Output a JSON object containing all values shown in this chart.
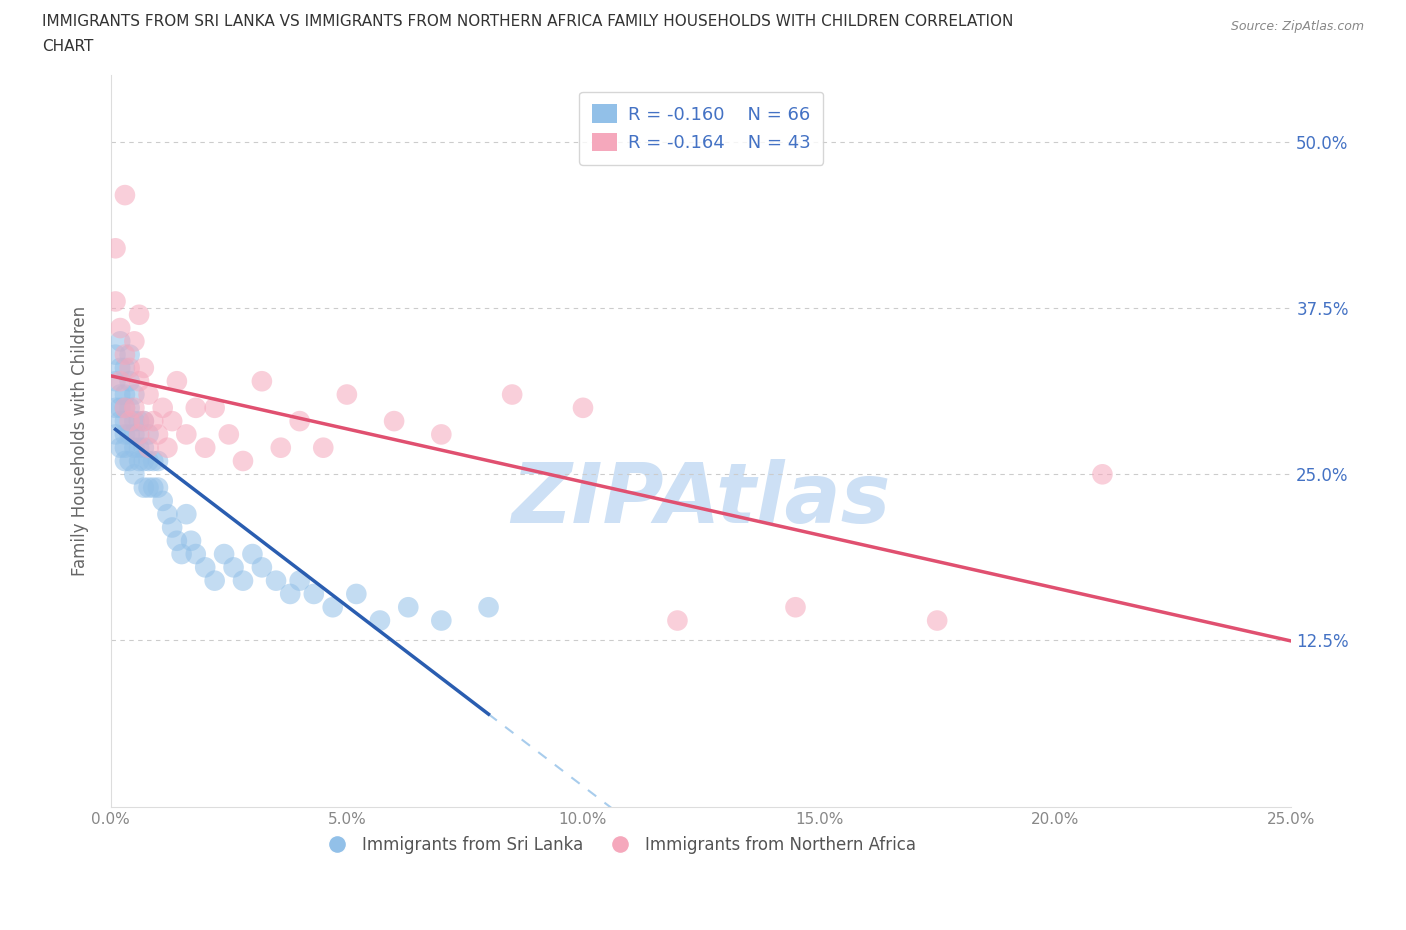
{
  "title_line1": "IMMIGRANTS FROM SRI LANKA VS IMMIGRANTS FROM NORTHERN AFRICA FAMILY HOUSEHOLDS WITH CHILDREN CORRELATION",
  "title_line2": "CHART",
  "source": "Source: ZipAtlas.com",
  "ylabel": "Family Households with Children",
  "sri_lanka_R": -0.16,
  "sri_lanka_N": 66,
  "n_africa_R": -0.164,
  "n_africa_N": 43,
  "sri_lanka_color": "#92c0e8",
  "n_africa_color": "#f5a8bc",
  "sri_lanka_line_color": "#2a5db0",
  "n_africa_line_color": "#e05070",
  "dashed_line_color": "#92c0e8",
  "watermark_text": "ZIPAtlas",
  "watermark_color": "#cde0f5",
  "background_color": "#ffffff",
  "xlim": [
    0.0,
    0.25
  ],
  "ylim": [
    0.0,
    0.55
  ],
  "x_ticks": [
    0.0,
    0.05,
    0.1,
    0.15,
    0.2,
    0.25
  ],
  "y_ticks": [
    0.0,
    0.125,
    0.25,
    0.375,
    0.5
  ],
  "x_tick_labels": [
    "0.0%",
    "5.0%",
    "10.0%",
    "15.0%",
    "20.0%",
    "25.0%"
  ],
  "y_tick_labels_right": [
    "",
    "12.5%",
    "25.0%",
    "37.5%",
    "50.0%"
  ],
  "ytick_color": "#4472c4",
  "xtick_color": "#888888",
  "sri_lanka_x": [
    0.001,
    0.001,
    0.001,
    0.001,
    0.002,
    0.002,
    0.002,
    0.002,
    0.002,
    0.002,
    0.003,
    0.003,
    0.003,
    0.003,
    0.003,
    0.003,
    0.003,
    0.004,
    0.004,
    0.004,
    0.004,
    0.004,
    0.005,
    0.005,
    0.005,
    0.005,
    0.005,
    0.006,
    0.006,
    0.006,
    0.007,
    0.007,
    0.007,
    0.007,
    0.008,
    0.008,
    0.008,
    0.009,
    0.009,
    0.01,
    0.01,
    0.011,
    0.012,
    0.013,
    0.014,
    0.015,
    0.016,
    0.017,
    0.018,
    0.02,
    0.022,
    0.024,
    0.026,
    0.028,
    0.03,
    0.032,
    0.035,
    0.038,
    0.04,
    0.043,
    0.047,
    0.052,
    0.057,
    0.063,
    0.07,
    0.08
  ],
  "sri_lanka_y": [
    0.28,
    0.3,
    0.32,
    0.34,
    0.27,
    0.29,
    0.3,
    0.31,
    0.33,
    0.35,
    0.26,
    0.27,
    0.28,
    0.29,
    0.3,
    0.31,
    0.33,
    0.26,
    0.28,
    0.3,
    0.32,
    0.34,
    0.25,
    0.27,
    0.28,
    0.29,
    0.31,
    0.26,
    0.27,
    0.29,
    0.24,
    0.26,
    0.27,
    0.29,
    0.24,
    0.26,
    0.28,
    0.24,
    0.26,
    0.24,
    0.26,
    0.23,
    0.22,
    0.21,
    0.2,
    0.19,
    0.22,
    0.2,
    0.19,
    0.18,
    0.17,
    0.19,
    0.18,
    0.17,
    0.19,
    0.18,
    0.17,
    0.16,
    0.17,
    0.16,
    0.15,
    0.16,
    0.14,
    0.15,
    0.14,
    0.15
  ],
  "n_africa_x": [
    0.001,
    0.001,
    0.002,
    0.002,
    0.003,
    0.003,
    0.003,
    0.004,
    0.004,
    0.005,
    0.005,
    0.006,
    0.006,
    0.006,
    0.007,
    0.007,
    0.008,
    0.008,
    0.009,
    0.01,
    0.011,
    0.012,
    0.013,
    0.014,
    0.016,
    0.018,
    0.02,
    0.022,
    0.025,
    0.028,
    0.032,
    0.036,
    0.04,
    0.045,
    0.05,
    0.06,
    0.07,
    0.085,
    0.1,
    0.12,
    0.145,
    0.175,
    0.21
  ],
  "n_africa_y": [
    0.38,
    0.42,
    0.32,
    0.36,
    0.3,
    0.34,
    0.46,
    0.29,
    0.33,
    0.3,
    0.35,
    0.28,
    0.32,
    0.37,
    0.29,
    0.33,
    0.27,
    0.31,
    0.29,
    0.28,
    0.3,
    0.27,
    0.29,
    0.32,
    0.28,
    0.3,
    0.27,
    0.3,
    0.28,
    0.26,
    0.32,
    0.27,
    0.29,
    0.27,
    0.31,
    0.29,
    0.28,
    0.31,
    0.3,
    0.14,
    0.15,
    0.14,
    0.25
  ],
  "sri_lanka_label": "Immigrants from Sri Lanka",
  "n_africa_label": "Immigrants from Northern Africa"
}
